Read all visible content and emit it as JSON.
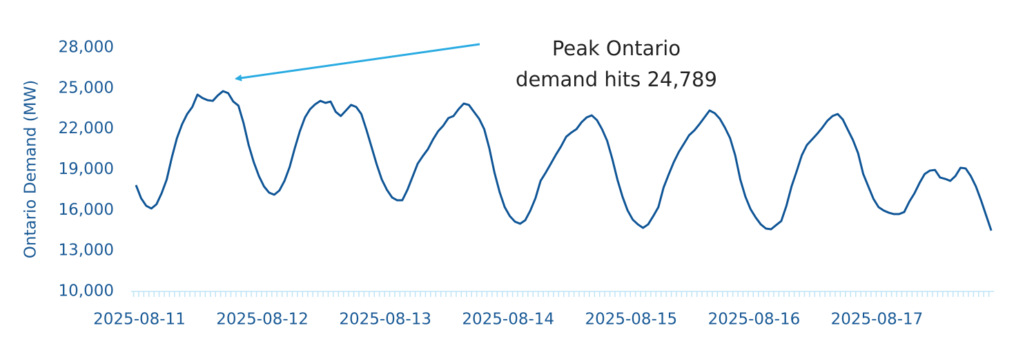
{
  "chart_data": {
    "type": "line",
    "y_axis_label": "Ontario Demand (MW)",
    "annotation": [
      "Peak Ontario",
      "demand hits 24,789"
    ],
    "categories": [
      "2025-08-11",
      null,
      null,
      null,
      null,
      null,
      null,
      null,
      null,
      null,
      null,
      null,
      null,
      null,
      null,
      null,
      null,
      null,
      null,
      null,
      null,
      null,
      null,
      null,
      "2025-08-12",
      null,
      null,
      null,
      null,
      null,
      null,
      null,
      null,
      null,
      null,
      null,
      null,
      null,
      null,
      null,
      null,
      null,
      null,
      null,
      null,
      null,
      null,
      null,
      "2025-08-13",
      null,
      null,
      null,
      null,
      null,
      null,
      null,
      null,
      null,
      null,
      null,
      null,
      null,
      null,
      null,
      null,
      null,
      null,
      null,
      null,
      null,
      null,
      null,
      "2025-08-14",
      null,
      null,
      null,
      null,
      null,
      null,
      null,
      null,
      null,
      null,
      null,
      null,
      null,
      null,
      null,
      null,
      null,
      null,
      null,
      null,
      null,
      null,
      null,
      "2025-08-15",
      null,
      null,
      null,
      null,
      null,
      null,
      null,
      null,
      null,
      null,
      null,
      null,
      null,
      null,
      null,
      null,
      null,
      null,
      null,
      null,
      null,
      null,
      null,
      "2025-08-16",
      null,
      null,
      null,
      null,
      null,
      null,
      null,
      null,
      null,
      null,
      null,
      null,
      null,
      null,
      null,
      null,
      null,
      null,
      null,
      null,
      null,
      null,
      null,
      "2025-08-17",
      null,
      null,
      null,
      null,
      null,
      null,
      null,
      null,
      null,
      null,
      null,
      null,
      null,
      null,
      null,
      null,
      null,
      null,
      null,
      null,
      null,
      null,
      null
    ],
    "series": [
      {
        "name": "Ontario Demand",
        "color": "#0f5596",
        "values": [
          17850,
          16880,
          16320,
          16120,
          16430,
          17240,
          18260,
          19890,
          21320,
          22340,
          23100,
          23620,
          24530,
          24280,
          24120,
          24070,
          24480,
          24789,
          24640,
          24020,
          23720,
          22440,
          20810,
          19540,
          18520,
          17750,
          17290,
          17140,
          17450,
          18160,
          19180,
          20560,
          21830,
          22850,
          23460,
          23820,
          24070,
          23920,
          24020,
          23260,
          22950,
          23360,
          23770,
          23620,
          23100,
          21930,
          20660,
          19380,
          18260,
          17500,
          16940,
          16730,
          16730,
          17500,
          18460,
          19430,
          19990,
          20500,
          21220,
          21830,
          22240,
          22800,
          22950,
          23460,
          23870,
          23770,
          23260,
          22750,
          21980,
          20560,
          18770,
          17340,
          16220,
          15560,
          15150,
          15000,
          15250,
          15970,
          16880,
          18160,
          18770,
          19430,
          20100,
          20710,
          21420,
          21730,
          21980,
          22490,
          22850,
          23000,
          22650,
          21980,
          21120,
          19790,
          18260,
          16990,
          15970,
          15300,
          14950,
          14690,
          14950,
          15560,
          16220,
          17650,
          18620,
          19540,
          20300,
          20910,
          21530,
          21880,
          22340,
          22850,
          23360,
          23160,
          22750,
          22090,
          21320,
          20050,
          18260,
          16990,
          16070,
          15460,
          14950,
          14640,
          14590,
          14900,
          15200,
          16320,
          17750,
          18870,
          20050,
          20810,
          21220,
          21630,
          22090,
          22600,
          22950,
          23100,
          22700,
          21930,
          21170,
          20200,
          18670,
          17750,
          16830,
          16220,
          15970,
          15810,
          15710,
          15710,
          15860,
          16630,
          17240,
          18010,
          18670,
          18920,
          18970,
          18410,
          18310,
          18160,
          18520,
          19130,
          19080,
          18520,
          17750,
          16730,
          15610,
          14490
        ]
      }
    ],
    "ylim": [
      10000,
      28000
    ],
    "yticks": [
      {
        "value": 10000,
        "label": "10,000"
      },
      {
        "value": 13000,
        "label": "13,000"
      },
      {
        "value": 16000,
        "label": "16,000"
      },
      {
        "value": 19000,
        "label": "19,000"
      },
      {
        "value": 22000,
        "label": "22,000"
      },
      {
        "value": 25000,
        "label": "25,000"
      },
      {
        "value": 28000,
        "label": "28,000"
      }
    ],
    "grid": false
  }
}
